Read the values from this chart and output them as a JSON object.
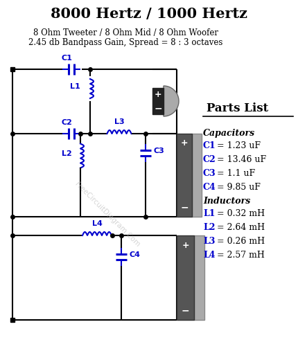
{
  "title": "8000 Hertz / 1000 Hertz",
  "subtitle1": "8 Ohm Tweeter / 8 Ohm Mid / 8 Ohm Woofer",
  "subtitle2": "2.45 db Bandpass Gain, Spread = 8 : 3 octaves",
  "parts_list_title": "Parts List",
  "capacitors_title": "Capacitors",
  "inductors_title": "Inductors",
  "parts": [
    {
      "label": "C1",
      "value": " = 1.23 uF"
    },
    {
      "label": "C2",
      "value": " = 13.46 uF"
    },
    {
      "label": "C3",
      "value": " = 1.1 uF"
    },
    {
      "label": "C4",
      "value": " = 9.85 uF"
    },
    {
      "label": "L1",
      "value": " = 0.32 mH"
    },
    {
      "label": "L2",
      "value": " = 2.64 mH"
    },
    {
      "label": "L3",
      "value": " = 0.26 mH"
    },
    {
      "label": "L4",
      "value": " = 2.57 mH"
    }
  ],
  "watermark": "FreeCircuitDiagram.Com",
  "bg_color": "#ffffff",
  "blue_color": "#0000cc",
  "black": "#000000",
  "fig_width": 4.31,
  "fig_height": 5.17,
  "dpi": 100
}
